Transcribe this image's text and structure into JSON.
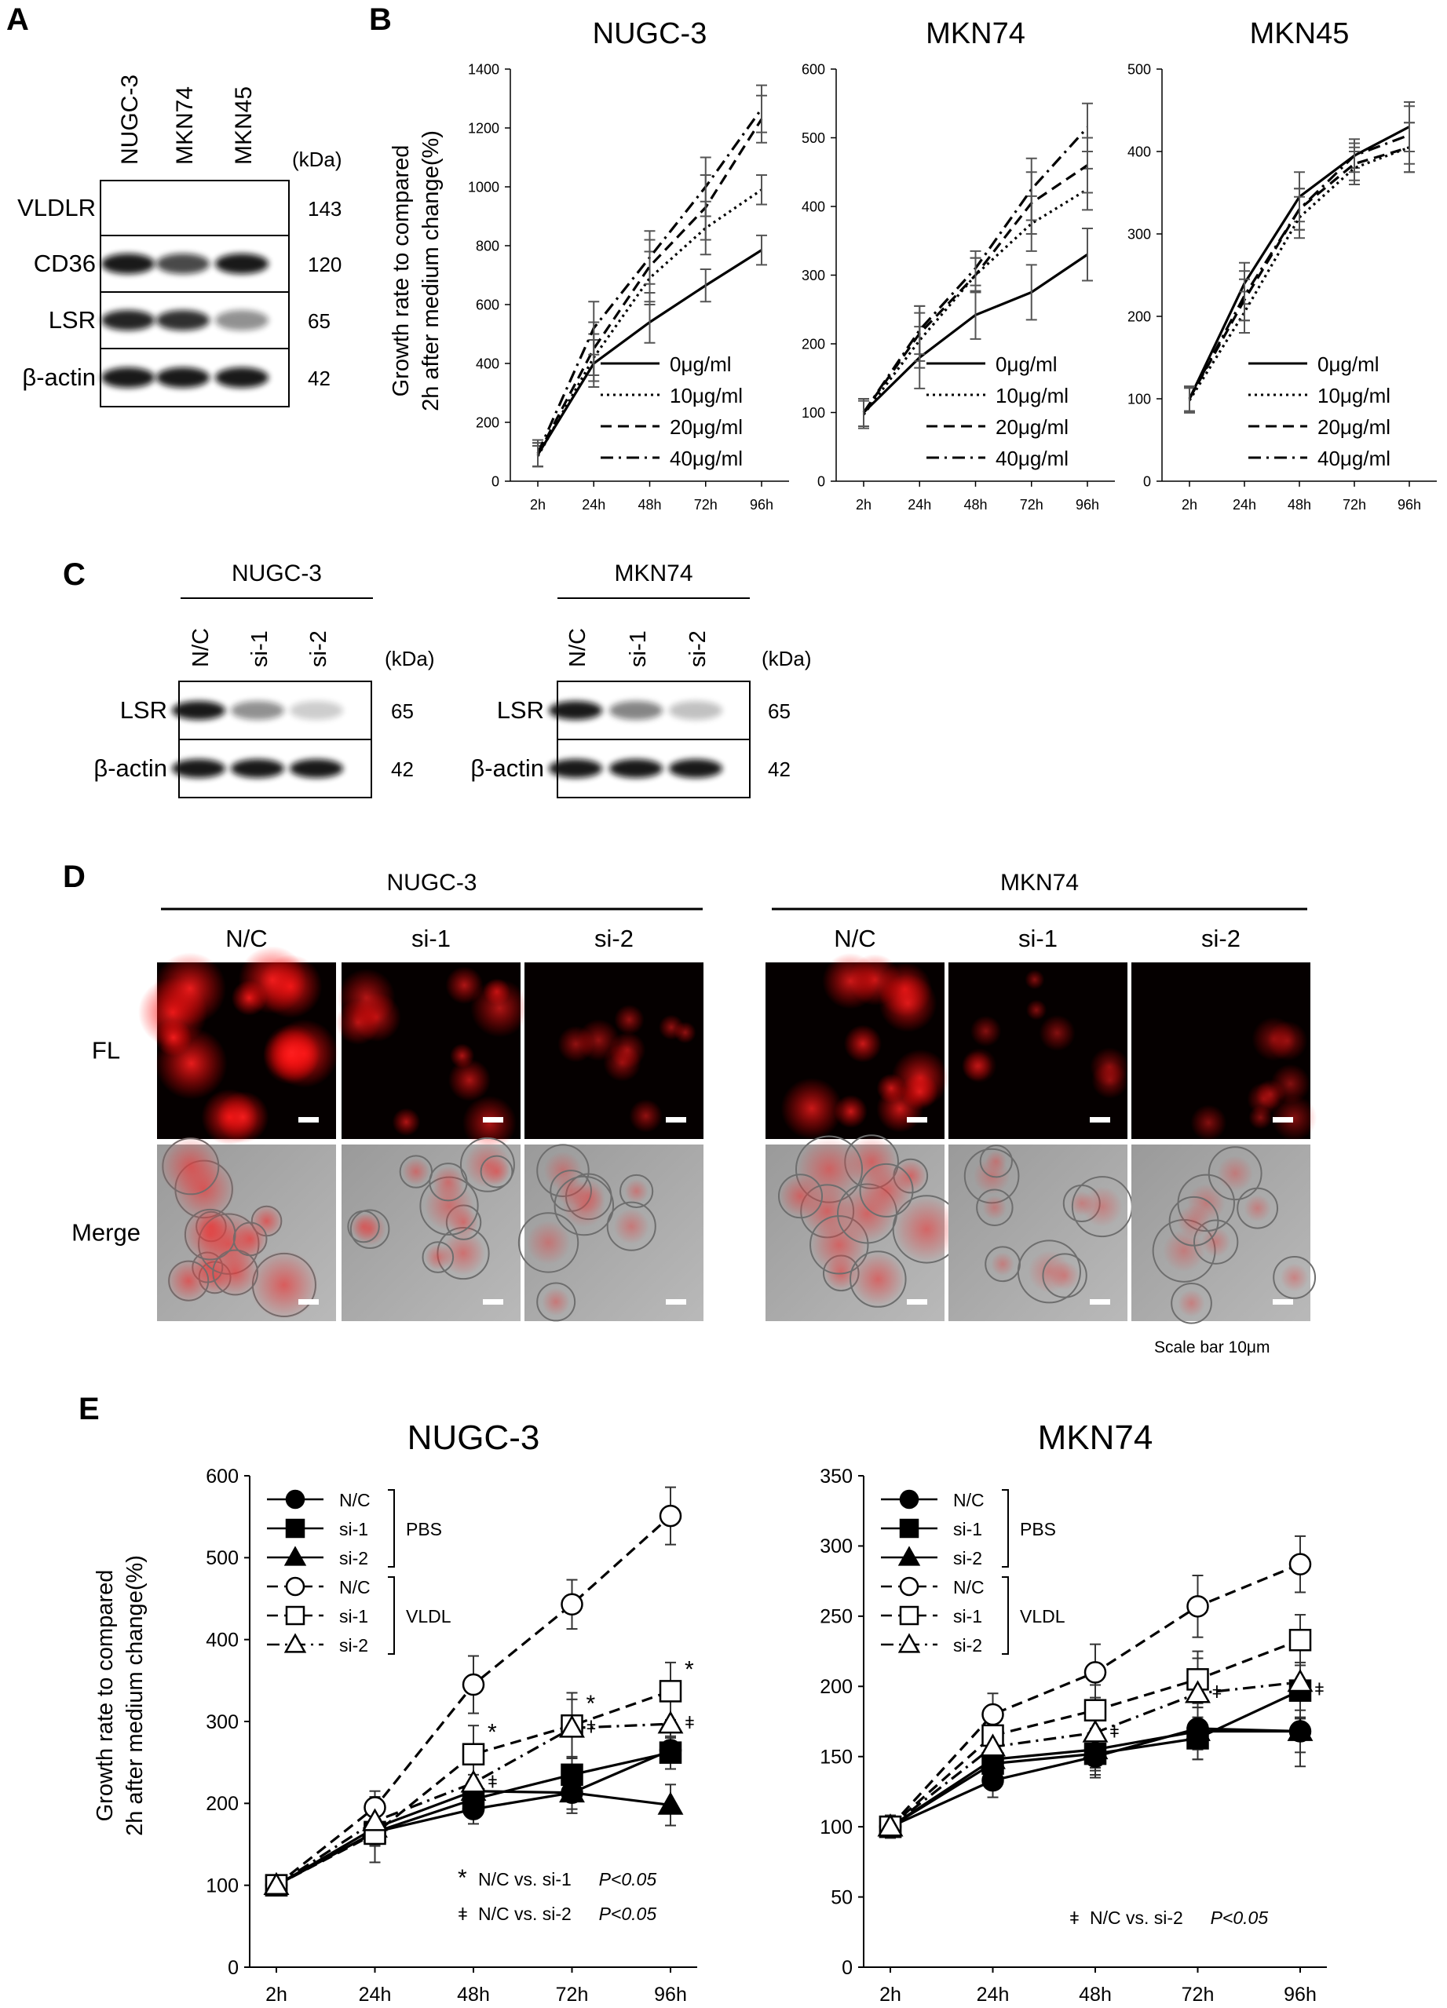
{
  "panels": {
    "A": {
      "letter": "A",
      "lanes": [
        "NUGC-3",
        "MKN74",
        "MKN45"
      ],
      "kda_header": "(kDa)",
      "blots": [
        {
          "protein": "VLDLR",
          "kda": "143",
          "intensity": [
            0.0,
            0.0,
            0.0
          ]
        },
        {
          "protein": "CD36",
          "kda": "120",
          "intensity": [
            0.95,
            0.75,
            0.95
          ]
        },
        {
          "protein": "LSR",
          "kda": "65",
          "intensity": [
            0.9,
            0.85,
            0.45
          ]
        },
        {
          "protein": "β-actin",
          "kda": "42",
          "intensity": [
            0.95,
            0.95,
            0.95
          ]
        }
      ]
    },
    "B": {
      "letter": "B"
    },
    "C": {
      "letter": "C",
      "groups": [
        {
          "cell": "NUGC-3",
          "lanes": [
            "N/C",
            "si-1",
            "si-2"
          ],
          "kda_header": "(kDa)",
          "blots": [
            {
              "protein": "LSR",
              "kda": "65",
              "intensity": [
                0.95,
                0.45,
                0.2
              ]
            },
            {
              "protein": "β-actin",
              "kda": "42",
              "intensity": [
                0.95,
                0.95,
                0.95
              ]
            }
          ]
        },
        {
          "cell": "MKN74",
          "lanes": [
            "N/C",
            "si-1",
            "si-2"
          ],
          "kda_header": "(kDa)",
          "blots": [
            {
              "protein": "LSR",
              "kda": "65",
              "intensity": [
                0.95,
                0.5,
                0.25
              ]
            },
            {
              "protein": "β-actin",
              "kda": "42",
              "intensity": [
                0.95,
                0.95,
                0.95
              ]
            }
          ]
        }
      ]
    },
    "D": {
      "letter": "D",
      "groups": [
        {
          "cell": "NUGC-3",
          "conditions": [
            "N/C",
            "si-1",
            "si-2"
          ],
          "red_level": [
            1.0,
            0.6,
            0.4
          ]
        },
        {
          "cell": "MKN74",
          "conditions": [
            "N/C",
            "si-1",
            "si-2"
          ],
          "red_level": [
            0.8,
            0.3,
            0.3
          ]
        }
      ],
      "rows": [
        "FL",
        "Merge"
      ],
      "scale_note": "Scale bar 10μm"
    },
    "E": {
      "letter": "E"
    }
  },
  "chart_data": [
    {
      "id": "B-NUGC-3",
      "type": "line",
      "title": "NUGC-3",
      "ylabel": [
        "Growth rate to compared",
        "2h after medium change(%)"
      ],
      "categories": [
        "2h",
        "24h",
        "48h",
        "72h",
        "96h"
      ],
      "ylim": [
        0,
        1400
      ],
      "yticks": [
        0,
        200,
        400,
        600,
        800,
        1000,
        1200,
        1400
      ],
      "series": [
        {
          "name": "0μg/ml",
          "style": "solid",
          "values": [
            90,
            400,
            540,
            665,
            785
          ],
          "errors": [
            40,
            80,
            70,
            55,
            50
          ]
        },
        {
          "name": "10μg/ml",
          "style": "dotted",
          "values": [
            85,
            420,
            690,
            860,
            990
          ],
          "errors": [
            35,
            80,
            90,
            90,
            50
          ]
        },
        {
          "name": "20μg/ml",
          "style": "dashed",
          "values": [
            90,
            450,
            730,
            930,
            1230
          ],
          "errors": [
            40,
            90,
            90,
            110,
            80
          ]
        },
        {
          "name": "40μg/ml",
          "style": "dashdot",
          "values": [
            95,
            520,
            760,
            1000,
            1265
          ],
          "errors": [
            45,
            90,
            90,
            100,
            80
          ]
        }
      ],
      "legend": "bottom-right"
    },
    {
      "id": "B-MKN74",
      "type": "line",
      "title": "MKN74",
      "categories": [
        "2h",
        "24h",
        "48h",
        "72h",
        "96h"
      ],
      "ylim": [
        0,
        600
      ],
      "yticks": [
        0,
        100,
        200,
        300,
        400,
        500,
        600
      ],
      "series": [
        {
          "name": "0μg/ml",
          "style": "solid",
          "values": [
            100,
            180,
            242,
            275,
            330
          ],
          "errors": [
            20,
            45,
            35,
            40,
            38
          ]
        },
        {
          "name": "10μg/ml",
          "style": "dotted",
          "values": [
            97,
            205,
            300,
            375,
            425
          ],
          "errors": [
            20,
            40,
            25,
            40,
            30
          ]
        },
        {
          "name": "20μg/ml",
          "style": "dashed",
          "values": [
            100,
            215,
            300,
            405,
            460
          ],
          "errors": [
            20,
            40,
            25,
            45,
            40
          ]
        },
        {
          "name": "40μg/ml",
          "style": "dashdot",
          "values": [
            100,
            220,
            310,
            425,
            515
          ],
          "errors": [
            20,
            35,
            25,
            45,
            35
          ]
        }
      ],
      "legend": "bottom-right"
    },
    {
      "id": "B-MKN45",
      "type": "line",
      "title": "MKN45",
      "categories": [
        "2h",
        "24h",
        "48h",
        "72h",
        "96h"
      ],
      "ylim": [
        0,
        500
      ],
      "yticks": [
        0,
        100,
        200,
        300,
        400,
        500
      ],
      "series": [
        {
          "name": "0μg/ml",
          "style": "solid",
          "values": [
            100,
            240,
            345,
            395,
            430
          ],
          "errors": [
            15,
            25,
            30,
            15,
            30
          ]
        },
        {
          "name": "10μg/ml",
          "style": "dotted",
          "values": [
            98,
            205,
            320,
            380,
            405
          ],
          "errors": [
            15,
            25,
            25,
            20,
            30
          ]
        },
        {
          "name": "20μg/ml",
          "style": "dashed",
          "values": [
            100,
            220,
            330,
            385,
            405
          ],
          "errors": [
            15,
            25,
            25,
            20,
            30
          ]
        },
        {
          "name": "40μg/ml",
          "style": "dashdot",
          "values": [
            100,
            225,
            330,
            395,
            420
          ],
          "errors": [
            15,
            30,
            25,
            20,
            35
          ]
        }
      ],
      "legend": "bottom-right"
    },
    {
      "id": "E-NUGC-3",
      "type": "line",
      "title": "NUGC-3",
      "ylabel": [
        "Growth rate to compared",
        "2h after medium change(%)"
      ],
      "categories": [
        "2h",
        "24h",
        "48h",
        "72h",
        "96h"
      ],
      "ylim": [
        0,
        600
      ],
      "yticks": [
        0,
        100,
        200,
        300,
        400,
        500,
        600
      ],
      "series": [
        {
          "name": "N/C",
          "group": "PBS",
          "marker": "circle",
          "filled": true,
          "style": "solid",
          "values": [
            100,
            165,
            193,
            213,
            265
          ],
          "errors": [
            12,
            15,
            18,
            20,
            15
          ]
        },
        {
          "name": "si-1",
          "group": "PBS",
          "marker": "square",
          "filled": true,
          "style": "solid",
          "values": [
            100,
            165,
            205,
            235,
            262
          ],
          "errors": [
            12,
            15,
            20,
            20,
            20
          ]
        },
        {
          "name": "si-2",
          "group": "PBS",
          "marker": "triangle",
          "filled": true,
          "style": "solid",
          "values": [
            100,
            170,
            215,
            213,
            198
          ],
          "errors": [
            12,
            15,
            20,
            25,
            25
          ]
        },
        {
          "name": "N/C",
          "group": "VLDL",
          "marker": "circle",
          "filled": false,
          "style": "dashed",
          "values": [
            100,
            195,
            345,
            443,
            551
          ],
          "errors": [
            12,
            20,
            35,
            30,
            35
          ]
        },
        {
          "name": "si-1",
          "group": "VLDL",
          "marker": "square",
          "filled": false,
          "style": "dashed",
          "values": [
            100,
            163,
            260,
            295,
            337
          ],
          "errors": [
            12,
            35,
            35,
            40,
            35
          ]
        },
        {
          "name": "si-2",
          "group": "VLDL",
          "marker": "triangle",
          "filled": false,
          "style": "dashdot",
          "values": [
            100,
            178,
            225,
            292,
            297
          ],
          "errors": [
            12,
            30,
            40,
            35,
            30
          ]
        }
      ],
      "groups": [
        "PBS",
        "VLDL"
      ],
      "annotations": [
        {
          "symbol": "*",
          "x": "48h",
          "series": "si-1 VLDL"
        },
        {
          "symbol": "ǂ",
          "x": "48h",
          "series": "si-2 VLDL"
        },
        {
          "symbol": "*",
          "x": "72h",
          "series": "si-1 VLDL"
        },
        {
          "symbol": "ǂ",
          "x": "72h",
          "series": "si-2 VLDL"
        },
        {
          "symbol": "*",
          "x": "96h",
          "series": "si-1 VLDL"
        },
        {
          "symbol": "ǂ",
          "x": "96h",
          "series": "si-2 VLDL"
        }
      ],
      "sig_notes": [
        {
          "symbol": "*",
          "text": "N/C vs. si-1",
          "p": "P<0.05"
        },
        {
          "symbol": "ǂ",
          "text": "N/C vs. si-2",
          "p": "P<0.05"
        }
      ],
      "legend": "top-left"
    },
    {
      "id": "E-MKN74",
      "type": "line",
      "title": "MKN74",
      "categories": [
        "2h",
        "24h",
        "48h",
        "72h",
        "96h"
      ],
      "ylim": [
        0,
        350
      ],
      "yticks": [
        0,
        50,
        100,
        150,
        200,
        250,
        300,
        350
      ],
      "series": [
        {
          "name": "N/C",
          "group": "PBS",
          "marker": "circle",
          "filled": true,
          "style": "solid",
          "values": [
            100,
            133,
            150,
            170,
            168
          ],
          "errors": [
            8,
            12,
            15,
            15,
            15
          ]
        },
        {
          "name": "si-1",
          "group": "PBS",
          "marker": "square",
          "filled": true,
          "style": "solid",
          "values": [
            100,
            145,
            152,
            163,
            197
          ],
          "errors": [
            8,
            15,
            15,
            15,
            20
          ]
        },
        {
          "name": "si-2",
          "group": "PBS",
          "marker": "triangle",
          "filled": true,
          "style": "solid",
          "values": [
            100,
            148,
            155,
            168,
            168
          ],
          "errors": [
            8,
            15,
            15,
            20,
            25
          ]
        },
        {
          "name": "N/C",
          "group": "VLDL",
          "marker": "circle",
          "filled": false,
          "style": "dashed",
          "values": [
            100,
            180,
            210,
            257,
            287
          ],
          "errors": [
            8,
            15,
            20,
            22,
            20
          ]
        },
        {
          "name": "si-1",
          "group": "VLDL",
          "marker": "square",
          "filled": false,
          "style": "dashed",
          "values": [
            100,
            165,
            183,
            205,
            233
          ],
          "errors": [
            8,
            15,
            18,
            20,
            18
          ]
        },
        {
          "name": "si-2",
          "group": "VLDL",
          "marker": "triangle",
          "filled": false,
          "style": "dashdot",
          "values": [
            100,
            157,
            167,
            195,
            203
          ],
          "errors": [
            8,
            20,
            25,
            25,
            25
          ]
        }
      ],
      "groups": [
        "PBS",
        "VLDL"
      ],
      "annotations": [
        {
          "symbol": "ǂ",
          "x": "48h",
          "series": "si-2 VLDL"
        },
        {
          "symbol": "ǂ",
          "x": "72h",
          "series": "si-2 VLDL"
        },
        {
          "symbol": "ǂ",
          "x": "96h",
          "series": "si-1 PBS"
        }
      ],
      "sig_notes": [
        {
          "symbol": "ǂ",
          "text": "N/C vs. si-2",
          "p": "P<0.05"
        }
      ],
      "legend": "top-left"
    }
  ]
}
